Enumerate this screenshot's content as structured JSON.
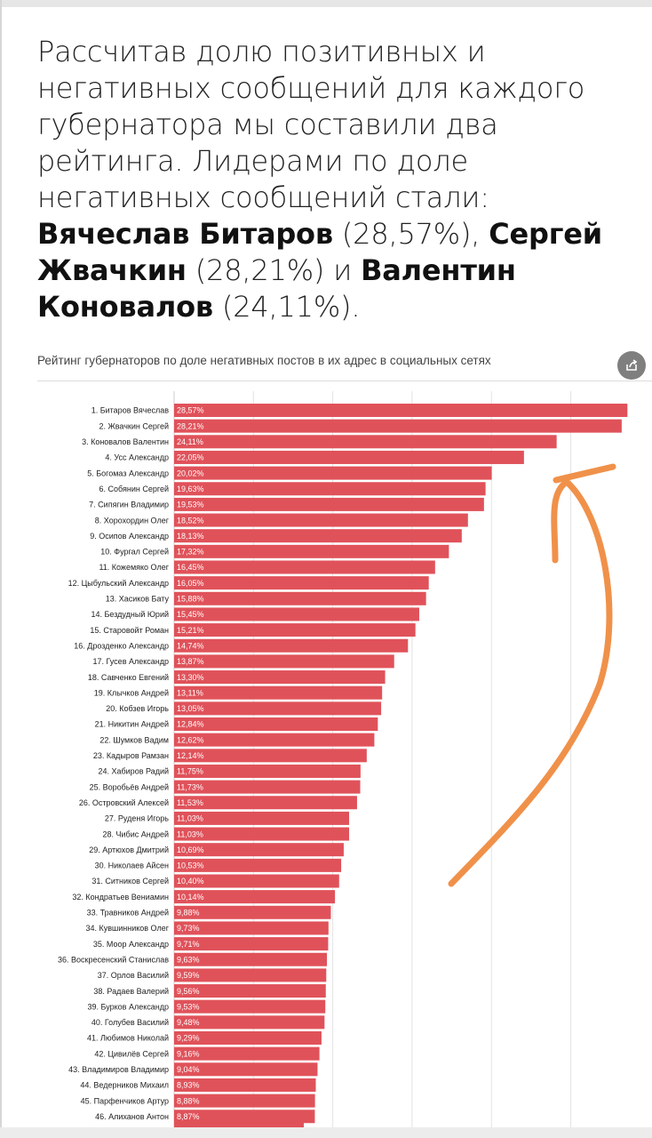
{
  "headline": {
    "intro": "Рассчитав долю позитивных и негативных сообщений для каждого губернатора мы составили два рейтинга. Лидерами по доле негативных сообщений стали:",
    "leader1_name": "Вячеслав Битаров",
    "leader1_share": "(28,57%)",
    "sep1": ",",
    "leader2_name": "Сергей Жвачкин",
    "leader2_share": "(28,21%)",
    "conj": "и",
    "leader3_name": "Валентин Коновалов",
    "leader3_share": "(24,11%)",
    "end": "."
  },
  "chart_title": "Рейтинг губернаторов по доле негативных постов в их адрес в социальных сетях",
  "share_icon": "share-icon",
  "colors": {
    "bar": "#e0525a",
    "annotation_arrow": "#f0914a",
    "grid": "#e2e2e2"
  },
  "chart_data": {
    "type": "bar",
    "orientation": "horizontal",
    "xlim": [
      0,
      29
    ],
    "grid": true,
    "categories": [
      "1. Битаров Вячеслав",
      "2. Жвачкин Сергей",
      "3. Коновалов Валентин",
      "4. Усс Александр",
      "5. Богомаз Александр",
      "6. Собянин Сергей",
      "7. Сипягин Владимир",
      "8. Хорохордин Олег",
      "9. Осипов Александр",
      "10. Фургал Сергей",
      "11. Кожемяко Олег",
      "12. Цыбульский Александр",
      "13. Хасиков Бату",
      "14. Бездудный Юрий",
      "15. Старовойт Роман",
      "16. Дрозденко Александр",
      "17. Гусев Александр",
      "18. Савченко Евгений",
      "19. Клычков Андрей",
      "20. Кобзев Игорь",
      "21. Никитин Андрей",
      "22. Шумков Вадим",
      "23. Кадыров Рамзан",
      "24. Хабиров Радий",
      "25. Воробьёв Андрей",
      "26. Островский Алексей",
      "27. Руденя Игорь",
      "28. Чибис Андрей",
      "29. Артюхов Дмитрий",
      "30. Николаев Айсен",
      "31. Ситников Сергей",
      "32. Кондратьев Вениамин",
      "33. Травников Андрей",
      "34. Кувшинников Олег",
      "35. Моор Александр",
      "36. Воскресенский Станислав",
      "37. Орлов Василий",
      "38. Радаев Валерий",
      "39. Бурков Александр",
      "40. Голубев Василий",
      "41. Любимов Николай",
      "42. Цивилёв Сергей",
      "43. Владимиров Владимир",
      "44. Ведерников Михаил",
      "45. Парфенчиков Артур",
      "46. Алиханов Антон"
    ],
    "values": [
      28.57,
      28.21,
      24.11,
      22.05,
      20.02,
      19.63,
      19.53,
      18.52,
      18.13,
      17.32,
      16.45,
      16.05,
      15.88,
      15.45,
      15.21,
      14.74,
      13.87,
      13.3,
      13.11,
      13.05,
      12.84,
      12.62,
      12.14,
      11.75,
      11.73,
      11.53,
      11.03,
      11.03,
      10.69,
      10.53,
      10.4,
      10.14,
      9.88,
      9.73,
      9.71,
      9.63,
      9.59,
      9.56,
      9.53,
      9.48,
      9.29,
      9.16,
      9.04,
      8.93,
      8.88,
      8.87
    ],
    "value_labels": [
      "28,57%",
      "28,21%",
      "24,11%",
      "22,05%",
      "20,02%",
      "19,63%",
      "19,53%",
      "18,52%",
      "18,13%",
      "17,32%",
      "16,45%",
      "16,05%",
      "15,88%",
      "15,45%",
      "15,21%",
      "14,74%",
      "13,87%",
      "13,30%",
      "13,11%",
      "13,05%",
      "12,84%",
      "12,62%",
      "12,14%",
      "11,75%",
      "11,73%",
      "11,53%",
      "11,03%",
      "11,03%",
      "10,69%",
      "10,53%",
      "10,40%",
      "10,14%",
      "9,88%",
      "9,73%",
      "9,71%",
      "9,63%",
      "9,59%",
      "9,56%",
      "9,53%",
      "9,48%",
      "9,29%",
      "9,16%",
      "9,04%",
      "8,93%",
      "8,88%",
      "8,87%"
    ]
  }
}
